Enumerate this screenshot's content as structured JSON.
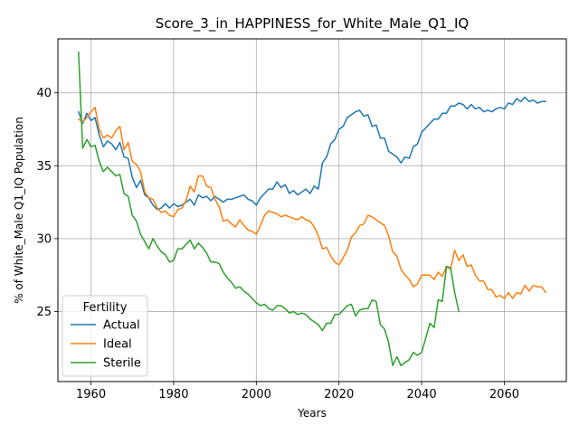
{
  "chart_data": {
    "type": "line",
    "title": "Score_3_in_HAPPINESS_for_White_Male_Q1_IQ",
    "xlabel": "Years",
    "ylabel": "% of White_Male Q1_IQ Population",
    "xlim": [
      1952,
      2075
    ],
    "ylim": [
      20.2,
      43.7
    ],
    "xticks": [
      1960,
      1980,
      2000,
      2020,
      2040,
      2060
    ],
    "yticks": [
      25,
      30,
      35,
      40
    ],
    "grid": true,
    "legend": {
      "title": "Fertility",
      "placement": "lower-left"
    },
    "colors": {
      "Actual": "#1f77b4",
      "Ideal": "#ff7f0e",
      "Sterile": "#2ca02c"
    },
    "series": [
      {
        "name": "Actual",
        "x": [
          1957,
          1958,
          1959,
          1960,
          1961,
          1962,
          1963,
          1964,
          1965,
          1966,
          1967,
          1968,
          1969,
          1970,
          1971,
          1972,
          1973,
          1974,
          1975,
          1976,
          1977,
          1978,
          1979,
          1980,
          1981,
          1982,
          1983,
          1984,
          1985,
          1986,
          1987,
          1988,
          1989,
          1990,
          1991,
          1992,
          1993,
          1994,
          1995,
          1996,
          1997,
          1998,
          1999,
          2000,
          2001,
          2002,
          2003,
          2004,
          2005,
          2006,
          2007,
          2008,
          2009,
          2010,
          2011,
          2012,
          2013,
          2014,
          2015,
          2016,
          2017,
          2018,
          2019,
          2020,
          2021,
          2022,
          2023,
          2024,
          2025,
          2026,
          2027,
          2028,
          2029,
          2030,
          2031,
          2032,
          2033,
          2034,
          2035,
          2036,
          2037,
          2038,
          2039,
          2040,
          2041,
          2042,
          2043,
          2044,
          2045,
          2046,
          2047,
          2048,
          2049,
          2050,
          2051,
          2052,
          2053,
          2054,
          2055,
          2056,
          2057,
          2058,
          2059,
          2060,
          2061,
          2062,
          2063,
          2064,
          2065,
          2066,
          2067,
          2068,
          2069,
          2070
        ],
        "y": [
          38.7,
          37.9,
          38.6,
          38.1,
          38.3,
          37.1,
          36.3,
          36.7,
          36.5,
          36.1,
          36.6,
          35.6,
          35.5,
          34.2,
          33.5,
          34.0,
          33.0,
          32.8,
          32.3,
          32.0,
          32.1,
          32.4,
          32.1,
          32.4,
          32.2,
          32.3,
          32.5,
          32.7,
          32.3,
          33.0,
          32.8,
          32.9,
          32.6,
          32.9,
          32.7,
          32.5,
          32.7,
          32.7,
          32.8,
          32.9,
          33.0,
          32.7,
          32.6,
          32.3,
          32.8,
          33.1,
          33.4,
          33.4,
          33.9,
          33.5,
          33.7,
          33.1,
          33.3,
          33.0,
          33.2,
          33.4,
          33.1,
          33.6,
          33.4,
          35.2,
          35.6,
          36.5,
          36.8,
          37.5,
          37.7,
          38.3,
          38.5,
          38.7,
          38.8,
          38.4,
          38.5,
          37.7,
          37.8,
          36.9,
          36.9,
          36.0,
          35.8,
          35.6,
          35.2,
          35.6,
          35.5,
          36.3,
          36.5,
          37.3,
          37.6,
          37.9,
          38.2,
          38.2,
          38.6,
          38.6,
          39.1,
          39.1,
          39.3,
          39.2,
          38.9,
          39.2,
          38.9,
          39.0,
          38.7,
          38.8,
          38.7,
          38.9,
          39.0,
          38.9,
          39.3,
          39.2,
          39.6,
          39.4,
          39.7,
          39.4,
          39.5,
          39.3,
          39.4,
          39.4
        ]
      },
      {
        "name": "Ideal",
        "x": [
          1957,
          1958,
          1959,
          1960,
          1961,
          1962,
          1963,
          1964,
          1965,
          1966,
          1967,
          1968,
          1969,
          1970,
          1971,
          1972,
          1973,
          1974,
          1975,
          1976,
          1977,
          1978,
          1979,
          1980,
          1981,
          1982,
          1983,
          1984,
          1985,
          1986,
          1987,
          1988,
          1989,
          1990,
          1991,
          1992,
          1993,
          1994,
          1995,
          1996,
          1997,
          1998,
          1999,
          2000,
          2001,
          2002,
          2003,
          2004,
          2005,
          2006,
          2007,
          2008,
          2009,
          2010,
          2011,
          2012,
          2013,
          2014,
          2015,
          2016,
          2017,
          2018,
          2019,
          2020,
          2021,
          2022,
          2023,
          2024,
          2025,
          2026,
          2027,
          2028,
          2029,
          2030,
          2031,
          2032,
          2033,
          2034,
          2035,
          2036,
          2037,
          2038,
          2039,
          2040,
          2041,
          2042,
          2043,
          2044,
          2045,
          2046,
          2047,
          2048,
          2049,
          2050,
          2051,
          2052,
          2053,
          2054,
          2055,
          2056,
          2057,
          2058,
          2059,
          2060,
          2061,
          2062,
          2063,
          2064,
          2065,
          2066,
          2067,
          2068,
          2069,
          2070
        ],
        "y": [
          38.2,
          38.0,
          38.3,
          38.7,
          39.0,
          37.5,
          36.9,
          37.1,
          36.9,
          37.4,
          37.7,
          36.1,
          36.6,
          35.3,
          35.1,
          34.6,
          33.2,
          32.8,
          32.7,
          32.1,
          31.8,
          31.9,
          31.6,
          31.5,
          32.0,
          32.1,
          32.6,
          33.6,
          33.2,
          34.3,
          34.3,
          33.6,
          33.5,
          32.7,
          32.2,
          31.2,
          31.3,
          31.0,
          30.8,
          31.3,
          30.9,
          30.6,
          30.5,
          30.3,
          30.9,
          31.6,
          31.9,
          31.8,
          31.7,
          31.5,
          31.6,
          31.5,
          31.4,
          31.3,
          31.5,
          31.3,
          31.2,
          30.8,
          30.2,
          29.3,
          29.4,
          28.8,
          28.4,
          28.2,
          28.7,
          29.2,
          30.1,
          30.4,
          30.9,
          31.0,
          31.6,
          31.5,
          31.3,
          31.1,
          30.9,
          30.2,
          29.1,
          28.8,
          27.9,
          27.5,
          27.2,
          26.7,
          26.9,
          27.5,
          27.5,
          27.5,
          27.2,
          27.7,
          27.4,
          28.1,
          27.9,
          29.2,
          28.5,
          28.9,
          28.1,
          28.2,
          27.5,
          27.1,
          27.1,
          26.5,
          26.5,
          26.0,
          26.1,
          25.9,
          26.3,
          25.9,
          26.3,
          26.2,
          26.8,
          26.4,
          26.8,
          26.7,
          26.7,
          26.3
        ]
      },
      {
        "name": "Sterile",
        "x": [
          1957,
          1958,
          1959,
          1960,
          1961,
          1962,
          1963,
          1964,
          1965,
          1966,
          1967,
          1968,
          1969,
          1970,
          1971,
          1972,
          1973,
          1974,
          1975,
          1976,
          1977,
          1978,
          1979,
          1980,
          1981,
          1982,
          1983,
          1984,
          1985,
          1986,
          1987,
          1988,
          1989,
          1990,
          1991,
          1992,
          1993,
          1994,
          1995,
          1996,
          1997,
          1998,
          1999,
          2000,
          2001,
          2002,
          2003,
          2004,
          2005,
          2006,
          2007,
          2008,
          2009,
          2010,
          2011,
          2012,
          2013,
          2014,
          2015,
          2016,
          2017,
          2018,
          2019,
          2020,
          2021,
          2022,
          2023,
          2024,
          2025,
          2026,
          2027,
          2028,
          2029,
          2030,
          2031,
          2032,
          2033,
          2034,
          2035,
          2036,
          2037,
          2038,
          2039,
          2040,
          2041,
          2042,
          2043,
          2044,
          2045,
          2046,
          2047,
          2048,
          2049
        ],
        "y": [
          42.8,
          36.2,
          36.8,
          36.3,
          36.4,
          35.3,
          34.6,
          34.9,
          34.6,
          34.3,
          34.4,
          33.1,
          32.9,
          31.6,
          31.2,
          30.3,
          29.8,
          29.3,
          30.0,
          29.5,
          29.1,
          28.9,
          28.4,
          28.5,
          29.3,
          29.3,
          29.6,
          29.9,
          29.3,
          29.7,
          29.4,
          29.0,
          28.4,
          28.4,
          28.3,
          27.7,
          27.3,
          27.0,
          26.6,
          26.7,
          26.4,
          26.2,
          25.9,
          25.6,
          25.4,
          25.5,
          25.2,
          25.1,
          25.4,
          25.4,
          25.2,
          24.9,
          25.0,
          24.8,
          24.9,
          24.8,
          24.5,
          24.3,
          24.1,
          23.7,
          24.2,
          24.2,
          24.8,
          24.8,
          25.1,
          25.4,
          25.5,
          24.7,
          25.1,
          25.2,
          25.2,
          25.8,
          25.7,
          24.1,
          23.8,
          22.9,
          21.3,
          21.9,
          21.3,
          21.5,
          21.7,
          22.2,
          22.0,
          22.2,
          23.2,
          24.2,
          23.9,
          25.8,
          25.7,
          28.1,
          28.0,
          26.3,
          25.0
        ]
      }
    ]
  }
}
